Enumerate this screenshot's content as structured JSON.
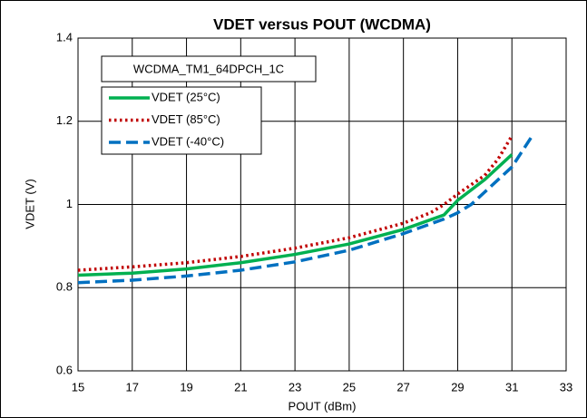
{
  "chart_data": {
    "type": "line",
    "title": "VDET versus POUT (WCDMA)",
    "xlabel": "POUT (dBm)",
    "ylabel": "VDET (V)",
    "annotation": "WCDMA_TM1_64DPCH_1C",
    "xlim": [
      15,
      33
    ],
    "xticks": [
      15,
      17,
      19,
      21,
      23,
      25,
      27,
      29,
      31,
      33
    ],
    "ylim": [
      0.6,
      1.4
    ],
    "yticks": [
      0.6,
      0.8,
      1,
      1.2,
      1.4
    ],
    "grid": true,
    "legend": "upper left",
    "series": [
      {
        "name": "VDET (25°C)",
        "color": "#00b050",
        "style": "solid",
        "x": [
          15,
          17,
          19,
          21,
          23,
          25,
          27,
          28.5,
          29,
          30,
          31
        ],
        "values": [
          0.83,
          0.835,
          0.845,
          0.86,
          0.88,
          0.905,
          0.94,
          0.975,
          1.01,
          1.06,
          1.12
        ]
      },
      {
        "name": "VDET (85°C)",
        "color": "#c00000",
        "style": "dotted",
        "x": [
          15,
          17,
          19,
          21,
          23,
          25,
          27,
          28,
          28.5,
          29,
          30,
          30.5,
          31
        ],
        "values": [
          0.842,
          0.85,
          0.86,
          0.875,
          0.895,
          0.92,
          0.955,
          0.98,
          1.0,
          1.025,
          1.07,
          1.11,
          1.165
        ]
      },
      {
        "name": "VDET (-40°C)",
        "color": "#0070c0",
        "style": "dashed",
        "x": [
          15,
          17,
          19,
          21,
          23,
          25,
          27,
          28.5,
          29,
          29.5,
          30,
          31,
          31.8
        ],
        "values": [
          0.812,
          0.818,
          0.828,
          0.842,
          0.862,
          0.89,
          0.93,
          0.965,
          0.98,
          1.0,
          1.03,
          1.09,
          1.17
        ]
      }
    ]
  }
}
